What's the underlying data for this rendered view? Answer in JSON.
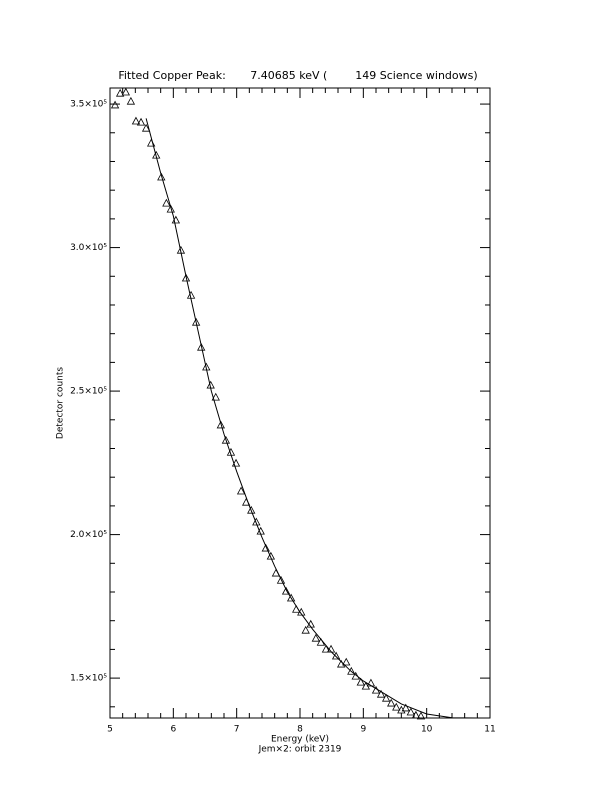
{
  "chart_data": {
    "type": "scatter",
    "title": "Fitted Copper Peak:       7.40685 keV (        149 Science windows)",
    "x_label": "Energy (keV)",
    "subtitle": "Jem×2: orbit 2319",
    "y_label": "Detector counts",
    "color": "#000000",
    "x": [
      5.08,
      5.16,
      5.25,
      5.33,
      5.41,
      5.49,
      5.57,
      5.65,
      5.73,
      5.81,
      5.89,
      5.96,
      6.04,
      6.12,
      6.2,
      6.28,
      6.36,
      6.44,
      6.52,
      6.59,
      6.67,
      6.75,
      6.83,
      6.91,
      6.99,
      7.07,
      7.15,
      7.23,
      7.31,
      7.38,
      7.46,
      7.54,
      7.62,
      7.7,
      7.78,
      7.86,
      7.94,
      8.02,
      8.09,
      8.17,
      8.25,
      8.33,
      8.41,
      8.49,
      8.57,
      8.65,
      8.73,
      8.81,
      8.88,
      8.96,
      9.04,
      9.12,
      9.2,
      9.28,
      9.36,
      9.44,
      9.52,
      9.6,
      9.67,
      9.75,
      9.83,
      9.91
    ],
    "values": [
      349700,
      353800,
      354200,
      351000,
      344100,
      343700,
      341600,
      336400,
      332200,
      324600,
      315500,
      313400,
      309600,
      299100,
      289400,
      283400,
      274000,
      265300,
      258400,
      252100,
      247900,
      238200,
      232900,
      228700,
      224900,
      215200,
      211300,
      208500,
      204400,
      201200,
      195300,
      192500,
      186600,
      184100,
      180300,
      177900,
      174000,
      173000,
      166700,
      168800,
      163900,
      162500,
      160100,
      160100,
      157700,
      154900,
      155600,
      152400,
      150700,
      148600,
      147200,
      148300,
      145800,
      144400,
      143000,
      141300,
      139900,
      138900,
      139600,
      138200,
      137100,
      136800
    ],
    "fit_x": [
      5.57,
      5.8,
      6.0,
      6.2,
      6.4,
      6.6,
      6.8,
      7.0,
      7.2,
      7.4,
      7.6,
      7.8,
      8.0,
      8.2,
      8.5,
      8.8,
      9.0,
      9.3,
      9.6,
      10.0,
      10.4,
      10.8,
      11.0
    ],
    "fit_values": [
      345000,
      326000,
      311000,
      290000,
      270000,
      250000,
      235000,
      222000,
      210000,
      199000,
      189000,
      180000,
      173000,
      167000,
      159000,
      152500,
      149000,
      145000,
      141000,
      137500,
      136200,
      136100,
      136100
    ],
    "xlim": [
      5,
      11
    ],
    "ylim": [
      136100,
      355600
    ],
    "xticks": [
      5,
      6,
      7,
      8,
      9,
      10,
      11
    ],
    "yticks": [
      {
        "value": 150000,
        "label": "1.5×10⁵"
      },
      {
        "value": 200000,
        "label": "2.0×10⁵"
      },
      {
        "value": 250000,
        "label": "2.5×10⁵"
      },
      {
        "value": 300000,
        "label": "3.0×10⁵"
      },
      {
        "value": 350000,
        "label": "3.5×10⁵"
      }
    ],
    "grid": false
  }
}
